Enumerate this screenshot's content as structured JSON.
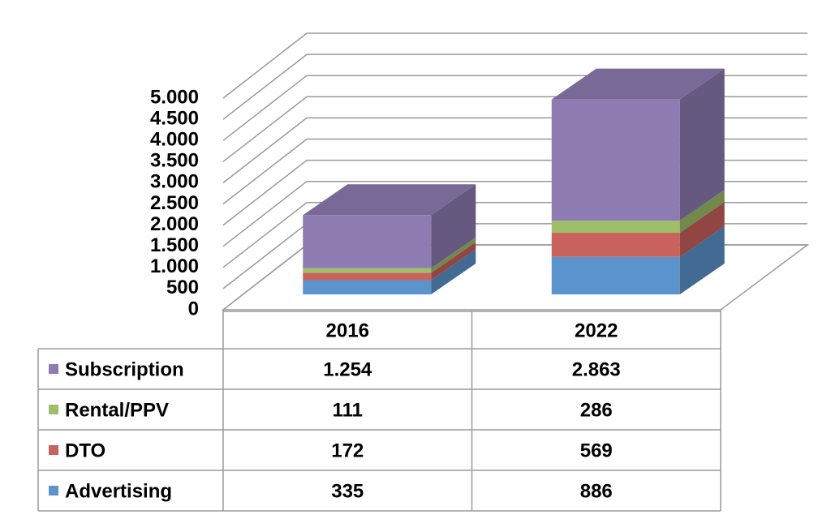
{
  "chart_data": {
    "type": "bar3d-stacked",
    "categories": [
      "2016",
      "2022"
    ],
    "series": [
      {
        "name": "Advertising",
        "color": "#5b93cc",
        "values": [
          335,
          886
        ]
      },
      {
        "name": "DTO",
        "color": "#c9615d",
        "values": [
          172,
          569
        ]
      },
      {
        "name": "Rental/PPV",
        "color": "#9fbe6a",
        "values": [
          111,
          286
        ]
      },
      {
        "name": "Subscription",
        "color": "#8e7bb2",
        "values": [
          1254,
          2863
        ],
        "value_labels": [
          "1.254",
          "2.863"
        ]
      }
    ],
    "ylim": [
      0,
      5000
    ],
    "yticks": [
      0,
      500,
      {
        "value": 1000,
        "label": "1.000"
      },
      {
        "value": 1500,
        "label": "1.500"
      },
      {
        "value": 2000,
        "label": "2.000"
      },
      {
        "value": 2500,
        "label": "2.500"
      },
      {
        "value": 3000,
        "label": "3.000"
      },
      {
        "value": 3500,
        "label": "3.500"
      },
      {
        "value": 4000,
        "label": "4.000"
      },
      {
        "value": 4500,
        "label": "4.500"
      },
      {
        "value": 5000,
        "label": "5.000"
      }
    ],
    "grid": true
  }
}
